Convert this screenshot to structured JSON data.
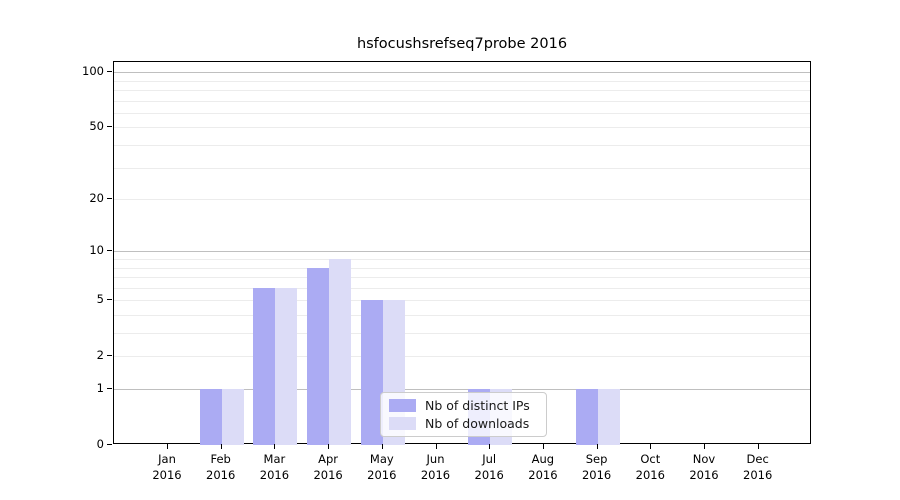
{
  "title": "hsfocushsrefseq7probe 2016",
  "chart_data": {
    "type": "bar",
    "title": "hsfocushsrefseq7probe 2016",
    "xlabel": "",
    "ylabel": "",
    "year": "2016",
    "categories": [
      "Jan",
      "Feb",
      "Mar",
      "Apr",
      "May",
      "Jun",
      "Jul",
      "Aug",
      "Sep",
      "Oct",
      "Nov",
      "Dec"
    ],
    "series": [
      {
        "name": "Nb of distinct IPs",
        "color": "#ababf3",
        "values": [
          0,
          1,
          6,
          8,
          5,
          0,
          1,
          0,
          1,
          0,
          0,
          0
        ]
      },
      {
        "name": "Nb of downloads",
        "color": "#dcdcf7",
        "values": [
          0,
          1,
          6,
          9,
          5,
          0,
          1,
          0,
          1,
          0,
          0,
          0
        ]
      }
    ],
    "yscale": "log1p",
    "ylim": [
      0,
      113
    ],
    "y_major_ticks": [
      0,
      1,
      2,
      5,
      10,
      20,
      50,
      100
    ],
    "y_major_gridlines": [
      1,
      10,
      100
    ],
    "y_minor_gridlines": [
      2,
      3,
      4,
      5,
      6,
      7,
      8,
      9,
      20,
      30,
      40,
      50,
      60,
      70,
      80,
      90
    ],
    "grid": true,
    "legend_position": "lower center inside"
  },
  "colors": {
    "major_grid": "#bfbfbf",
    "minor_grid": "#ececec",
    "axis": "#000000",
    "background": "#ffffff",
    "legend_border": "#cccccc"
  }
}
